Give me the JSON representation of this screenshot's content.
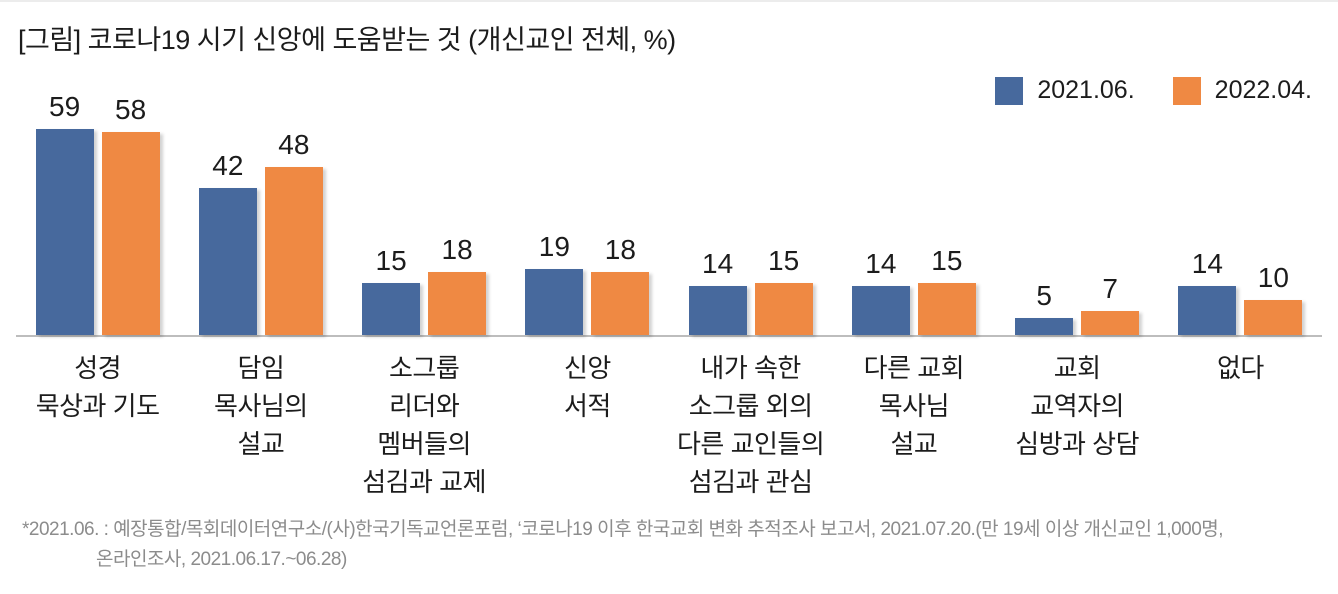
{
  "title": "[그림] 코로나19 시기 신앙에 도움받는 것 (개신교인 전체, %)",
  "chart_data": {
    "type": "bar",
    "title": "[그림] 코로나19 시기 신앙에 도움받는 것 (개신교인 전체, %)",
    "categories": [
      "성경 묵상과 기도",
      "담임 목사님의 설교",
      "소그룹 리더와 멤버들의 섬김과 교제",
      "신앙 서적",
      "내가 속한 소그룹 외의 다른 교인들의 섬김과 관심",
      "다른 교회 목사님 설교",
      "교회 교역자의 심방과 상담",
      "없다"
    ],
    "category_label_lines": [
      [
        "성경",
        "묵상과 기도"
      ],
      [
        "담임",
        "목사님의",
        "설교"
      ],
      [
        "소그룹",
        "리더와",
        "멤버들의",
        "섬김과 교제"
      ],
      [
        "신앙",
        "서적"
      ],
      [
        "내가 속한",
        "소그룹 외의",
        "다른 교인들의",
        "섬김과 관심"
      ],
      [
        "다른 교회",
        "목사님",
        "설교"
      ],
      [
        "교회",
        "교역자의",
        "심방과 상담"
      ],
      [
        "없다"
      ]
    ],
    "series": [
      {
        "name": "2021.06.",
        "color": "#47699d",
        "values": [
          59,
          42,
          15,
          19,
          14,
          14,
          5,
          14
        ]
      },
      {
        "name": "2022.04.",
        "color": "#ef8943",
        "values": [
          58,
          48,
          18,
          18,
          15,
          15,
          7,
          10
        ]
      }
    ],
    "xlabel": "",
    "ylabel": "",
    "ylim": [
      0,
      70
    ],
    "grid": false,
    "legend_position": "top-right",
    "value_labels": true,
    "axis_line_color": "#bdbdbd"
  },
  "footnote": {
    "lines": [
      "*2021.06. : 예장통합/목회데이터연구소/(사)한국기독교언론포럼, ‘코로나19 이후 한국교회 변화 추적조사 보고서, 2021.07.20.(만 19세 이상 개신교인 1,000명,",
      "온라인조사, 2021.06.17.~06.28)"
    ]
  }
}
